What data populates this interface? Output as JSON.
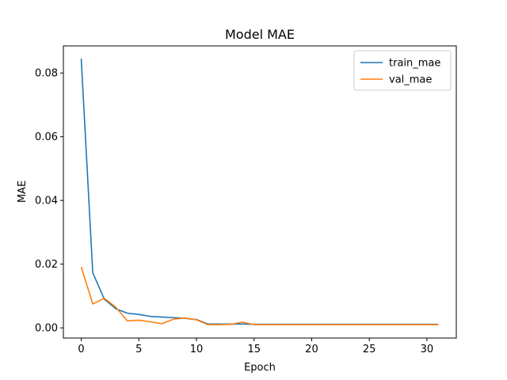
{
  "chart_data": {
    "type": "line",
    "title": "Model MAE",
    "xlabel": "Epoch",
    "ylabel": "MAE",
    "xlim": [
      -1.55,
      32.55
    ],
    "ylim": [
      -0.0032,
      0.0885
    ],
    "xticks": [
      0,
      5,
      10,
      15,
      20,
      25,
      30
    ],
    "yticks": [
      0.0,
      0.02,
      0.04,
      0.06,
      0.08
    ],
    "ytick_labels": [
      "0.00",
      "0.02",
      "0.04",
      "0.06",
      "0.08"
    ],
    "grid": false,
    "legend_position": "top-right",
    "x": [
      0,
      1,
      2,
      3,
      4,
      5,
      6,
      7,
      8,
      9,
      10,
      11,
      12,
      13,
      14,
      15,
      16,
      17,
      18,
      19,
      20,
      21,
      22,
      23,
      24,
      25,
      26,
      27,
      28,
      29,
      30,
      31
    ],
    "series": [
      {
        "name": "train_mae",
        "color": "#1f77b4",
        "values": [
          0.0845,
          0.0173,
          0.009,
          0.006,
          0.0046,
          0.0042,
          0.0036,
          0.0034,
          0.0032,
          0.003,
          0.0026,
          0.0012,
          0.0012,
          0.0012,
          0.0012,
          0.0011,
          0.0011,
          0.0011,
          0.0011,
          0.0011,
          0.0011,
          0.0011,
          0.0011,
          0.0011,
          0.0011,
          0.0011,
          0.0011,
          0.0011,
          0.0011,
          0.0011,
          0.0011,
          0.0011
        ]
      },
      {
        "name": "val_mae",
        "color": "#ff7f0e",
        "values": [
          0.0191,
          0.0075,
          0.0093,
          0.0065,
          0.0022,
          0.0024,
          0.0019,
          0.0013,
          0.0027,
          0.0031,
          0.0025,
          0.001,
          0.001,
          0.0011,
          0.0018,
          0.001,
          0.001,
          0.001,
          0.001,
          0.001,
          0.001,
          0.001,
          0.001,
          0.001,
          0.001,
          0.001,
          0.001,
          0.001,
          0.001,
          0.001,
          0.001,
          0.001
        ]
      }
    ]
  }
}
